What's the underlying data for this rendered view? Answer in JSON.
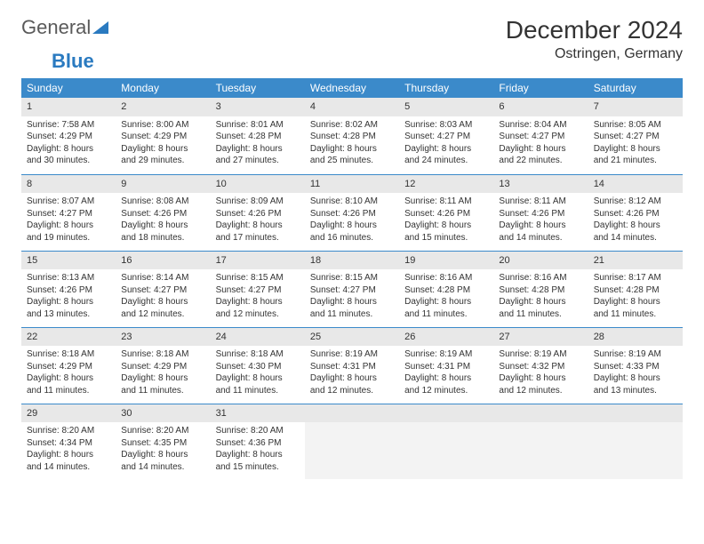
{
  "logo": {
    "text1": "General",
    "text2": "Blue"
  },
  "title": "December 2024",
  "location": "Ostringen, Germany",
  "colors": {
    "header_bg": "#3b8aca",
    "header_text": "#ffffff",
    "daynum_bg": "#e8e8e8",
    "border": "#3b8aca",
    "text": "#333333",
    "empty_bg": "#f3f3f3"
  },
  "layout": {
    "cols": 7,
    "rows": 5
  },
  "weekdays": [
    "Sunday",
    "Monday",
    "Tuesday",
    "Wednesday",
    "Thursday",
    "Friday",
    "Saturday"
  ],
  "days": [
    {
      "n": "1",
      "sunrise": "Sunrise: 7:58 AM",
      "sunset": "Sunset: 4:29 PM",
      "daylight": "Daylight: 8 hours and 30 minutes."
    },
    {
      "n": "2",
      "sunrise": "Sunrise: 8:00 AM",
      "sunset": "Sunset: 4:29 PM",
      "daylight": "Daylight: 8 hours and 29 minutes."
    },
    {
      "n": "3",
      "sunrise": "Sunrise: 8:01 AM",
      "sunset": "Sunset: 4:28 PM",
      "daylight": "Daylight: 8 hours and 27 minutes."
    },
    {
      "n": "4",
      "sunrise": "Sunrise: 8:02 AM",
      "sunset": "Sunset: 4:28 PM",
      "daylight": "Daylight: 8 hours and 25 minutes."
    },
    {
      "n": "5",
      "sunrise": "Sunrise: 8:03 AM",
      "sunset": "Sunset: 4:27 PM",
      "daylight": "Daylight: 8 hours and 24 minutes."
    },
    {
      "n": "6",
      "sunrise": "Sunrise: 8:04 AM",
      "sunset": "Sunset: 4:27 PM",
      "daylight": "Daylight: 8 hours and 22 minutes."
    },
    {
      "n": "7",
      "sunrise": "Sunrise: 8:05 AM",
      "sunset": "Sunset: 4:27 PM",
      "daylight": "Daylight: 8 hours and 21 minutes."
    },
    {
      "n": "8",
      "sunrise": "Sunrise: 8:07 AM",
      "sunset": "Sunset: 4:27 PM",
      "daylight": "Daylight: 8 hours and 19 minutes."
    },
    {
      "n": "9",
      "sunrise": "Sunrise: 8:08 AM",
      "sunset": "Sunset: 4:26 PM",
      "daylight": "Daylight: 8 hours and 18 minutes."
    },
    {
      "n": "10",
      "sunrise": "Sunrise: 8:09 AM",
      "sunset": "Sunset: 4:26 PM",
      "daylight": "Daylight: 8 hours and 17 minutes."
    },
    {
      "n": "11",
      "sunrise": "Sunrise: 8:10 AM",
      "sunset": "Sunset: 4:26 PM",
      "daylight": "Daylight: 8 hours and 16 minutes."
    },
    {
      "n": "12",
      "sunrise": "Sunrise: 8:11 AM",
      "sunset": "Sunset: 4:26 PM",
      "daylight": "Daylight: 8 hours and 15 minutes."
    },
    {
      "n": "13",
      "sunrise": "Sunrise: 8:11 AM",
      "sunset": "Sunset: 4:26 PM",
      "daylight": "Daylight: 8 hours and 14 minutes."
    },
    {
      "n": "14",
      "sunrise": "Sunrise: 8:12 AM",
      "sunset": "Sunset: 4:26 PM",
      "daylight": "Daylight: 8 hours and 14 minutes."
    },
    {
      "n": "15",
      "sunrise": "Sunrise: 8:13 AM",
      "sunset": "Sunset: 4:26 PM",
      "daylight": "Daylight: 8 hours and 13 minutes."
    },
    {
      "n": "16",
      "sunrise": "Sunrise: 8:14 AM",
      "sunset": "Sunset: 4:27 PM",
      "daylight": "Daylight: 8 hours and 12 minutes."
    },
    {
      "n": "17",
      "sunrise": "Sunrise: 8:15 AM",
      "sunset": "Sunset: 4:27 PM",
      "daylight": "Daylight: 8 hours and 12 minutes."
    },
    {
      "n": "18",
      "sunrise": "Sunrise: 8:15 AM",
      "sunset": "Sunset: 4:27 PM",
      "daylight": "Daylight: 8 hours and 11 minutes."
    },
    {
      "n": "19",
      "sunrise": "Sunrise: 8:16 AM",
      "sunset": "Sunset: 4:28 PM",
      "daylight": "Daylight: 8 hours and 11 minutes."
    },
    {
      "n": "20",
      "sunrise": "Sunrise: 8:16 AM",
      "sunset": "Sunset: 4:28 PM",
      "daylight": "Daylight: 8 hours and 11 minutes."
    },
    {
      "n": "21",
      "sunrise": "Sunrise: 8:17 AM",
      "sunset": "Sunset: 4:28 PM",
      "daylight": "Daylight: 8 hours and 11 minutes."
    },
    {
      "n": "22",
      "sunrise": "Sunrise: 8:18 AM",
      "sunset": "Sunset: 4:29 PM",
      "daylight": "Daylight: 8 hours and 11 minutes."
    },
    {
      "n": "23",
      "sunrise": "Sunrise: 8:18 AM",
      "sunset": "Sunset: 4:29 PM",
      "daylight": "Daylight: 8 hours and 11 minutes."
    },
    {
      "n": "24",
      "sunrise": "Sunrise: 8:18 AM",
      "sunset": "Sunset: 4:30 PM",
      "daylight": "Daylight: 8 hours and 11 minutes."
    },
    {
      "n": "25",
      "sunrise": "Sunrise: 8:19 AM",
      "sunset": "Sunset: 4:31 PM",
      "daylight": "Daylight: 8 hours and 12 minutes."
    },
    {
      "n": "26",
      "sunrise": "Sunrise: 8:19 AM",
      "sunset": "Sunset: 4:31 PM",
      "daylight": "Daylight: 8 hours and 12 minutes."
    },
    {
      "n": "27",
      "sunrise": "Sunrise: 8:19 AM",
      "sunset": "Sunset: 4:32 PM",
      "daylight": "Daylight: 8 hours and 12 minutes."
    },
    {
      "n": "28",
      "sunrise": "Sunrise: 8:19 AM",
      "sunset": "Sunset: 4:33 PM",
      "daylight": "Daylight: 8 hours and 13 minutes."
    },
    {
      "n": "29",
      "sunrise": "Sunrise: 8:20 AM",
      "sunset": "Sunset: 4:34 PM",
      "daylight": "Daylight: 8 hours and 14 minutes."
    },
    {
      "n": "30",
      "sunrise": "Sunrise: 8:20 AM",
      "sunset": "Sunset: 4:35 PM",
      "daylight": "Daylight: 8 hours and 14 minutes."
    },
    {
      "n": "31",
      "sunrise": "Sunrise: 8:20 AM",
      "sunset": "Sunset: 4:36 PM",
      "daylight": "Daylight: 8 hours and 15 minutes."
    }
  ]
}
